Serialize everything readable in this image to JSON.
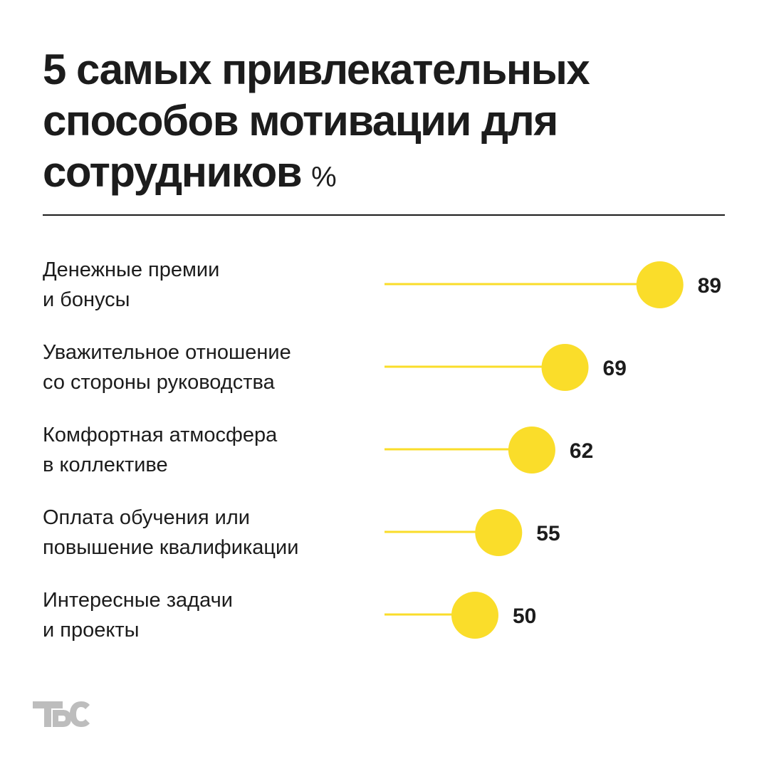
{
  "header": {
    "title": "5 самых привлекательных\nспособов мотивации для\nсотрудников",
    "unit": "%"
  },
  "chart_data": {
    "type": "lollipop",
    "title": "5 самых привлекательных способов мотивации для сотрудников",
    "unit": "%",
    "categories": [
      "Денежные премии\nи бонусы",
      "Уважительное отношение\nсо стороны руководства",
      "Комфортная атмосфера\nв коллективе",
      "Оплата обучения или\nповышение квалификации",
      "Интересные задачи\nи проекты"
    ],
    "values": [
      89,
      69,
      62,
      55,
      50
    ],
    "value_labels": [
      "89",
      "69",
      "62",
      "55",
      "50"
    ],
    "colors": {
      "line": "#fadd2a",
      "dot": "#fadd2a",
      "text": "#1c1c1c"
    },
    "legend": "none",
    "grid": false
  },
  "logo": {
    "icon": "tbs-logo-icon",
    "color": "#bdbdbd"
  }
}
